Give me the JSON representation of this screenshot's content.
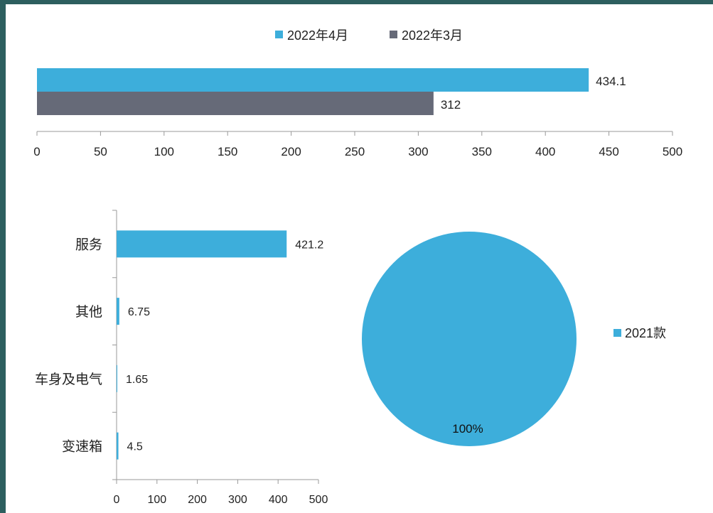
{
  "chart_data": [
    {
      "type": "bar",
      "orientation": "horizontal",
      "series": [
        {
          "name": "2022年4月",
          "values": [
            434.1
          ]
        },
        {
          "name": "2022年3月",
          "values": [
            312
          ]
        }
      ],
      "xlim": [
        0,
        500
      ],
      "xticks": [
        "0",
        "50",
        "100",
        "150",
        "200",
        "250",
        "300",
        "350",
        "400",
        "450",
        "500"
      ],
      "legend": "top",
      "colors": [
        "#3daedb",
        "#666a78"
      ]
    },
    {
      "type": "bar",
      "orientation": "horizontal",
      "categories": [
        "服务",
        "其他",
        "车身及电气",
        "变速箱"
      ],
      "values": [
        421.2,
        6.75,
        1.65,
        4.5
      ],
      "value_labels": [
        "421.2",
        "6.75",
        "1.65",
        "4.5"
      ],
      "xlim": [
        0,
        500
      ],
      "xticks": [
        "0",
        "100",
        "200",
        "300",
        "400",
        "500"
      ],
      "color": "#3daedb"
    },
    {
      "type": "pie",
      "labels": [
        "2021款"
      ],
      "values": [
        100
      ],
      "value_labels": [
        "100%"
      ],
      "legend": "right",
      "colors": [
        "#3daedb"
      ]
    }
  ]
}
